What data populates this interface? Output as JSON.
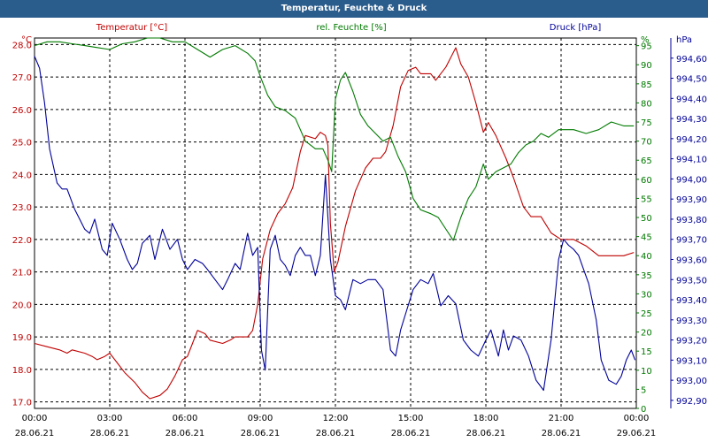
{
  "window_title": "Temperatur, Feuchte & Druck",
  "colors": {
    "temperature": "#c00000",
    "humidity": "#007a00",
    "pressure": "#00009a",
    "title_bg": "#2a5c8c"
  },
  "chart_data": {
    "type": "line",
    "title": "Temperatur, Feuchte & Druck",
    "legend": [
      "Temperatur [°C]",
      "rel. Feuchte [%]",
      "Druck [hPa]"
    ],
    "x": {
      "range_hours": [
        0,
        24
      ],
      "ticks": [
        {
          "hour": 0,
          "time": "00:00",
          "date": "28.06.21"
        },
        {
          "hour": 3,
          "time": "03:00",
          "date": "28.06.21"
        },
        {
          "hour": 6,
          "time": "06:00",
          "date": "28.06.21"
        },
        {
          "hour": 9,
          "time": "09:00",
          "date": "28.06.21"
        },
        {
          "hour": 12,
          "time": "12:00",
          "date": "28.06.21"
        },
        {
          "hour": 15,
          "time": "15:00",
          "date": "28.06.21"
        },
        {
          "hour": 18,
          "time": "18:00",
          "date": "28.06.21"
        },
        {
          "hour": 21,
          "time": "21:00",
          "date": "28.06.21"
        },
        {
          "hour": 24,
          "time": "00:00",
          "date": "29.06.21"
        }
      ]
    },
    "axes": {
      "temperature": {
        "unit": "°C",
        "range": [
          16.8,
          28.2
        ],
        "ticks": [
          "17.0",
          "18.0",
          "19.0",
          "20.0",
          "21.0",
          "22.0",
          "23.0",
          "24.0",
          "25.0",
          "26.0",
          "27.0",
          "28.0"
        ]
      },
      "humidity": {
        "unit": "%",
        "range": [
          0,
          97
        ],
        "ticks": [
          "0",
          "5",
          "10",
          "15",
          "20",
          "25",
          "30",
          "35",
          "40",
          "45",
          "50",
          "55",
          "60",
          "65",
          "70",
          "75",
          "80",
          "85",
          "90",
          "95"
        ]
      },
      "pressure": {
        "unit": "hPa",
        "range": [
          992.86,
          994.7
        ],
        "ticks": [
          "992,90",
          "993,00",
          "993,10",
          "993,20",
          "993,30",
          "993,40",
          "993,50",
          "993,60",
          "993,70",
          "993,80",
          "993,90",
          "994,00",
          "994,10",
          "994,20",
          "994,30",
          "994,40",
          "994,50",
          "994,60"
        ]
      }
    },
    "series": [
      {
        "name": "Temperatur [°C]",
        "axis": "temperature",
        "points": [
          [
            0,
            18.8
          ],
          [
            0.5,
            18.7
          ],
          [
            1,
            18.6
          ],
          [
            1.3,
            18.5
          ],
          [
            1.5,
            18.6
          ],
          [
            2,
            18.5
          ],
          [
            2.3,
            18.4
          ],
          [
            2.5,
            18.3
          ],
          [
            2.8,
            18.4
          ],
          [
            3,
            18.5
          ],
          [
            3.3,
            18.2
          ],
          [
            3.6,
            17.9
          ],
          [
            4,
            17.6
          ],
          [
            4.3,
            17.3
          ],
          [
            4.6,
            17.1
          ],
          [
            5,
            17.2
          ],
          [
            5.3,
            17.4
          ],
          [
            5.6,
            17.8
          ],
          [
            5.9,
            18.3
          ],
          [
            6.1,
            18.4
          ],
          [
            6.3,
            18.8
          ],
          [
            6.5,
            19.2
          ],
          [
            6.8,
            19.1
          ],
          [
            7,
            18.9
          ],
          [
            7.5,
            18.8
          ],
          [
            7.8,
            18.9
          ],
          [
            8,
            19.0
          ],
          [
            8.5,
            19.0
          ],
          [
            8.7,
            19.2
          ],
          [
            8.9,
            20.0
          ],
          [
            9.1,
            21.4
          ],
          [
            9.4,
            22.3
          ],
          [
            9.7,
            22.8
          ],
          [
            10,
            23.1
          ],
          [
            10.3,
            23.6
          ],
          [
            10.6,
            24.7
          ],
          [
            10.8,
            25.2
          ],
          [
            11.2,
            25.1
          ],
          [
            11.4,
            25.3
          ],
          [
            11.6,
            25.2
          ],
          [
            11.7,
            24.9
          ],
          [
            11.8,
            22.5
          ],
          [
            11.95,
            21.0
          ],
          [
            12.1,
            21.3
          ],
          [
            12.4,
            22.4
          ],
          [
            12.8,
            23.5
          ],
          [
            13.2,
            24.2
          ],
          [
            13.5,
            24.5
          ],
          [
            13.8,
            24.5
          ],
          [
            14,
            24.7
          ],
          [
            14.3,
            25.5
          ],
          [
            14.6,
            26.7
          ],
          [
            14.9,
            27.2
          ],
          [
            15.2,
            27.3
          ],
          [
            15.4,
            27.1
          ],
          [
            15.8,
            27.1
          ],
          [
            16.0,
            26.9
          ],
          [
            16.4,
            27.3
          ],
          [
            16.8,
            27.9
          ],
          [
            17.0,
            27.4
          ],
          [
            17.3,
            27.0
          ],
          [
            17.6,
            26.2
          ],
          [
            17.9,
            25.3
          ],
          [
            18.1,
            25.6
          ],
          [
            18.4,
            25.2
          ],
          [
            18.8,
            24.5
          ],
          [
            19.1,
            23.9
          ],
          [
            19.5,
            23.0
          ],
          [
            19.8,
            22.7
          ],
          [
            20.2,
            22.7
          ],
          [
            20.6,
            22.2
          ],
          [
            21,
            22.0
          ],
          [
            21.5,
            22.0
          ],
          [
            22,
            21.8
          ],
          [
            22.5,
            21.5
          ],
          [
            23,
            21.5
          ],
          [
            23.5,
            21.5
          ],
          [
            23.9,
            21.6
          ]
        ]
      },
      {
        "name": "rel. Feuchte [%]",
        "axis": "humidity",
        "points": [
          [
            0,
            95
          ],
          [
            0.5,
            96
          ],
          [
            1,
            96
          ],
          [
            1.5,
            95.5
          ],
          [
            2,
            95
          ],
          [
            2.5,
            94.5
          ],
          [
            3,
            94
          ],
          [
            3.5,
            95.5
          ],
          [
            4,
            96
          ],
          [
            4.5,
            97
          ],
          [
            5,
            97
          ],
          [
            5.5,
            96
          ],
          [
            6,
            96
          ],
          [
            6.5,
            94
          ],
          [
            7,
            92
          ],
          [
            7.5,
            94
          ],
          [
            8,
            95
          ],
          [
            8.5,
            93
          ],
          [
            8.8,
            91
          ],
          [
            9,
            87
          ],
          [
            9.3,
            82
          ],
          [
            9.6,
            79
          ],
          [
            10,
            78
          ],
          [
            10.4,
            76
          ],
          [
            10.8,
            70
          ],
          [
            11.2,
            68
          ],
          [
            11.5,
            68
          ],
          [
            11.7,
            65
          ],
          [
            11.85,
            62
          ],
          [
            12.0,
            81
          ],
          [
            12.2,
            86
          ],
          [
            12.4,
            88
          ],
          [
            12.7,
            83
          ],
          [
            13,
            77
          ],
          [
            13.3,
            74
          ],
          [
            13.6,
            72
          ],
          [
            13.9,
            70
          ],
          [
            14.2,
            71
          ],
          [
            14.5,
            66
          ],
          [
            14.8,
            62
          ],
          [
            15.1,
            55
          ],
          [
            15.4,
            52
          ],
          [
            15.8,
            51
          ],
          [
            16.1,
            50
          ],
          [
            16.4,
            47
          ],
          [
            16.7,
            44
          ],
          [
            17,
            50
          ],
          [
            17.3,
            55
          ],
          [
            17.6,
            58
          ],
          [
            17.9,
            64
          ],
          [
            18.1,
            60
          ],
          [
            18.4,
            62
          ],
          [
            18.7,
            63
          ],
          [
            19.0,
            64
          ],
          [
            19.3,
            67
          ],
          [
            19.6,
            69
          ],
          [
            19.9,
            70
          ],
          [
            20.2,
            72
          ],
          [
            20.5,
            71
          ],
          [
            20.9,
            73
          ],
          [
            21.2,
            73
          ],
          [
            21.5,
            73
          ],
          [
            22,
            72
          ],
          [
            22.5,
            73
          ],
          [
            23,
            75
          ],
          [
            23.5,
            74
          ],
          [
            23.9,
            74
          ]
        ]
      },
      {
        "name": "Druck [hPa]",
        "axis": "pressure",
        "points": [
          [
            0,
            994.61
          ],
          [
            0.2,
            994.55
          ],
          [
            0.4,
            994.38
          ],
          [
            0.6,
            994.15
          ],
          [
            0.9,
            993.98
          ],
          [
            1.1,
            993.95
          ],
          [
            1.3,
            993.95
          ],
          [
            1.6,
            993.85
          ],
          [
            1.8,
            993.8
          ],
          [
            2.0,
            993.75
          ],
          [
            2.2,
            993.73
          ],
          [
            2.4,
            993.8
          ],
          [
            2.7,
            993.65
          ],
          [
            2.9,
            993.62
          ],
          [
            3.1,
            993.78
          ],
          [
            3.4,
            993.7
          ],
          [
            3.7,
            993.6
          ],
          [
            3.9,
            993.55
          ],
          [
            4.1,
            993.58
          ],
          [
            4.3,
            993.68
          ],
          [
            4.6,
            993.72
          ],
          [
            4.8,
            993.6
          ],
          [
            5.1,
            993.75
          ],
          [
            5.4,
            993.65
          ],
          [
            5.7,
            993.7
          ],
          [
            5.9,
            993.6
          ],
          [
            6.1,
            993.55
          ],
          [
            6.4,
            993.6
          ],
          [
            6.7,
            993.58
          ],
          [
            6.9,
            993.55
          ],
          [
            7.2,
            993.5
          ],
          [
            7.5,
            993.45
          ],
          [
            7.7,
            993.5
          ],
          [
            8.0,
            993.58
          ],
          [
            8.2,
            993.55
          ],
          [
            8.5,
            993.73
          ],
          [
            8.7,
            993.62
          ],
          [
            8.9,
            993.66
          ],
          [
            9.05,
            993.15
          ],
          [
            9.2,
            993.05
          ],
          [
            9.4,
            993.65
          ],
          [
            9.6,
            993.72
          ],
          [
            9.8,
            993.6
          ],
          [
            10.0,
            993.57
          ],
          [
            10.2,
            993.52
          ],
          [
            10.4,
            993.62
          ],
          [
            10.6,
            993.66
          ],
          [
            10.8,
            993.62
          ],
          [
            11.0,
            993.62
          ],
          [
            11.2,
            993.52
          ],
          [
            11.4,
            993.62
          ],
          [
            11.6,
            994.02
          ],
          [
            11.8,
            993.6
          ],
          [
            12.0,
            993.42
          ],
          [
            12.2,
            993.4
          ],
          [
            12.4,
            993.35
          ],
          [
            12.7,
            993.5
          ],
          [
            13.0,
            993.48
          ],
          [
            13.3,
            993.5
          ],
          [
            13.6,
            993.5
          ],
          [
            13.9,
            993.45
          ],
          [
            14.2,
            993.15
          ],
          [
            14.4,
            993.12
          ],
          [
            14.6,
            993.25
          ],
          [
            14.8,
            993.33
          ],
          [
            15.1,
            993.45
          ],
          [
            15.4,
            993.5
          ],
          [
            15.7,
            993.48
          ],
          [
            15.9,
            993.53
          ],
          [
            16.2,
            993.37
          ],
          [
            16.5,
            993.42
          ],
          [
            16.8,
            993.38
          ],
          [
            17.1,
            993.2
          ],
          [
            17.4,
            993.15
          ],
          [
            17.7,
            993.12
          ],
          [
            18.0,
            993.2
          ],
          [
            18.2,
            993.25
          ],
          [
            18.5,
            993.12
          ],
          [
            18.7,
            993.25
          ],
          [
            18.9,
            993.15
          ],
          [
            19.1,
            993.22
          ],
          [
            19.4,
            993.2
          ],
          [
            19.7,
            993.12
          ],
          [
            20.0,
            993.0
          ],
          [
            20.3,
            992.95
          ],
          [
            20.6,
            993.2
          ],
          [
            20.9,
            993.6
          ],
          [
            21.1,
            993.7
          ],
          [
            21.3,
            993.67
          ],
          [
            21.5,
            993.65
          ],
          [
            21.7,
            993.62
          ],
          [
            21.9,
            993.55
          ],
          [
            22.1,
            993.48
          ],
          [
            22.4,
            993.3
          ],
          [
            22.6,
            993.1
          ],
          [
            22.9,
            993.0
          ],
          [
            23.2,
            992.98
          ],
          [
            23.4,
            993.02
          ],
          [
            23.6,
            993.1
          ],
          [
            23.8,
            993.15
          ],
          [
            23.95,
            993.1
          ]
        ]
      }
    ]
  }
}
